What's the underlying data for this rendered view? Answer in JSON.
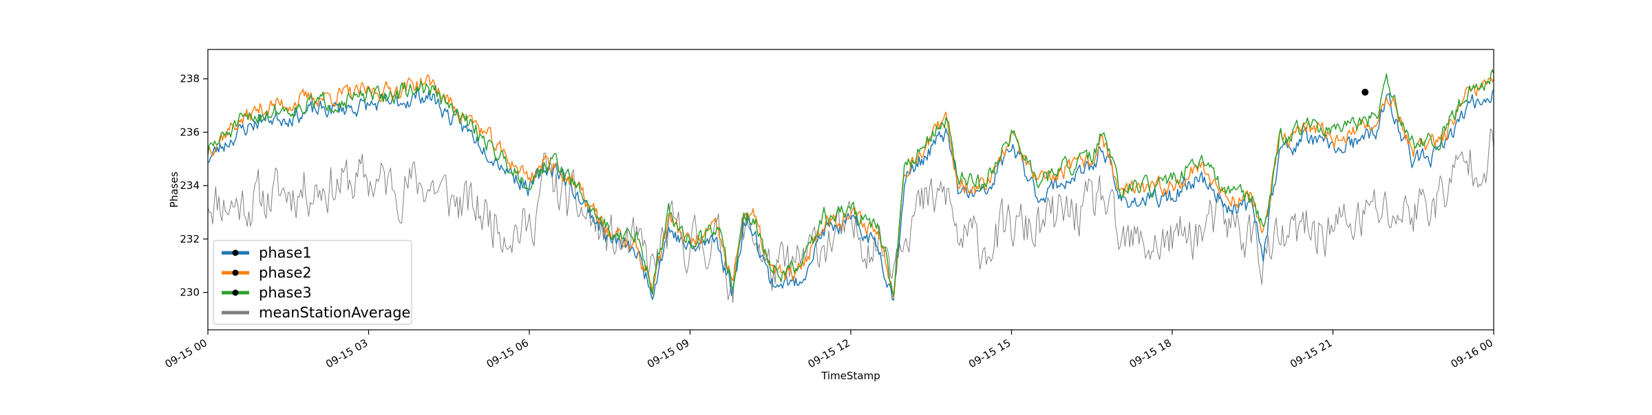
{
  "chart_data": {
    "type": "line",
    "title": "",
    "xlabel": "TimeStamp",
    "ylabel": "Phases",
    "x_ticks": [
      "09-15 00",
      "09-15 03",
      "09-15 06",
      "09-15 09",
      "09-15 12",
      "09-15 15",
      "09-15 18",
      "09-15 21",
      "09-16 00"
    ],
    "y_ticks": [
      "230",
      "232",
      "234",
      "236",
      "238"
    ],
    "xlim": [
      "2019-09-15 00:00",
      "2019-09-16 00:00"
    ],
    "ylim": [
      228.6,
      239.1
    ],
    "grid": false,
    "legend_position": "lower-left",
    "x_hours": [
      0,
      0.5,
      1,
      1.5,
      2,
      2.5,
      3,
      3.5,
      4,
      4.2,
      4.5,
      5,
      5.5,
      6,
      6.3,
      6.5,
      7,
      7.5,
      8,
      8.3,
      8.6,
      9,
      9.5,
      9.8,
      10,
      10.2,
      10.5,
      11,
      11.5,
      12,
      12.5,
      12.8,
      13,
      13.5,
      13.8,
      14,
      14.5,
      15,
      15.5,
      16,
      16.5,
      16.7,
      17,
      17.5,
      18,
      18.5,
      19,
      19.5,
      19.7,
      20,
      20.5,
      21,
      21.5,
      21.8,
      22,
      22.5,
      23,
      23.5,
      24
    ],
    "series": [
      {
        "name": "phase1",
        "color": "#1f77b4",
        "values": [
          235.0,
          235.9,
          236.5,
          236.6,
          236.8,
          236.9,
          237.0,
          237.1,
          237.4,
          237.3,
          236.6,
          235.8,
          234.8,
          233.9,
          234.6,
          234.7,
          233.4,
          232.0,
          231.5,
          230.1,
          232.4,
          231.6,
          232.0,
          230.0,
          232.6,
          232.4,
          230.4,
          230.3,
          232.3,
          232.6,
          231.8,
          229.8,
          234.2,
          235.4,
          236.0,
          233.8,
          233.6,
          235.5,
          233.6,
          234.2,
          234.6,
          235.6,
          233.5,
          233.4,
          233.6,
          234.4,
          233.3,
          233.1,
          231.6,
          235.2,
          235.8,
          235.4,
          235.6,
          236.0,
          237.3,
          234.9,
          235.2,
          236.9,
          237.6
        ]
      },
      {
        "name": "phase2",
        "color": "#ff7f0e",
        "values": [
          235.4,
          236.3,
          236.9,
          237.1,
          237.3,
          237.4,
          237.5,
          237.6,
          237.9,
          237.8,
          237.1,
          236.3,
          235.2,
          234.3,
          234.9,
          234.8,
          233.6,
          232.2,
          231.7,
          230.2,
          232.8,
          231.8,
          232.4,
          230.3,
          233.0,
          232.8,
          230.8,
          230.6,
          232.7,
          232.9,
          232.3,
          230.2,
          234.6,
          235.8,
          236.4,
          234.1,
          234.0,
          235.9,
          234.0,
          234.6,
          234.9,
          235.9,
          233.8,
          233.8,
          234.0,
          234.8,
          233.6,
          233.5,
          232.2,
          235.6,
          236.2,
          235.8,
          236.0,
          236.4,
          237.6,
          235.3,
          235.6,
          237.3,
          238.0
        ]
      },
      {
        "name": "phase3",
        "color": "#2ca02c",
        "values": [
          235.3,
          236.2,
          236.7,
          236.9,
          237.1,
          237.2,
          237.3,
          237.4,
          237.7,
          237.6,
          236.9,
          236.1,
          235.0,
          234.1,
          234.8,
          234.9,
          233.6,
          232.3,
          232.0,
          230.4,
          232.9,
          231.9,
          232.5,
          230.2,
          233.0,
          232.8,
          230.8,
          230.8,
          232.8,
          233.1,
          232.4,
          230.0,
          234.7,
          235.9,
          236.5,
          234.3,
          234.1,
          236.0,
          234.1,
          234.7,
          235.0,
          236.0,
          233.9,
          233.9,
          234.1,
          235.0,
          233.7,
          233.6,
          232.2,
          235.8,
          236.3,
          236.0,
          236.2,
          236.6,
          237.8,
          235.5,
          235.8,
          237.6,
          238.2
        ]
      },
      {
        "name": "meanStationAverage",
        "color": "#808080",
        "values": [
          233.6,
          233.3,
          233.5,
          233.8,
          234.0,
          234.1,
          234.2,
          234.0,
          234.1,
          234.0,
          233.5,
          233.1,
          232.6,
          232.3,
          234.5,
          233.8,
          233.0,
          231.9,
          231.7,
          230.8,
          232.3,
          231.8,
          232.0,
          230.4,
          232.3,
          232.3,
          230.7,
          230.9,
          232.0,
          232.2,
          232.0,
          231.4,
          232.8,
          233.3,
          233.7,
          232.0,
          231.8,
          232.4,
          232.4,
          232.9,
          233.1,
          233.7,
          231.7,
          231.8,
          231.9,
          232.3,
          232.6,
          232.1,
          231.3,
          231.8,
          232.3,
          232.4,
          232.7,
          233.1,
          232.9,
          233.1,
          233.6,
          234.9,
          235.4
        ]
      }
    ],
    "marker": {
      "series": "phase3",
      "x_hour": 21.6,
      "value": 237.5,
      "color": "#000000"
    }
  }
}
